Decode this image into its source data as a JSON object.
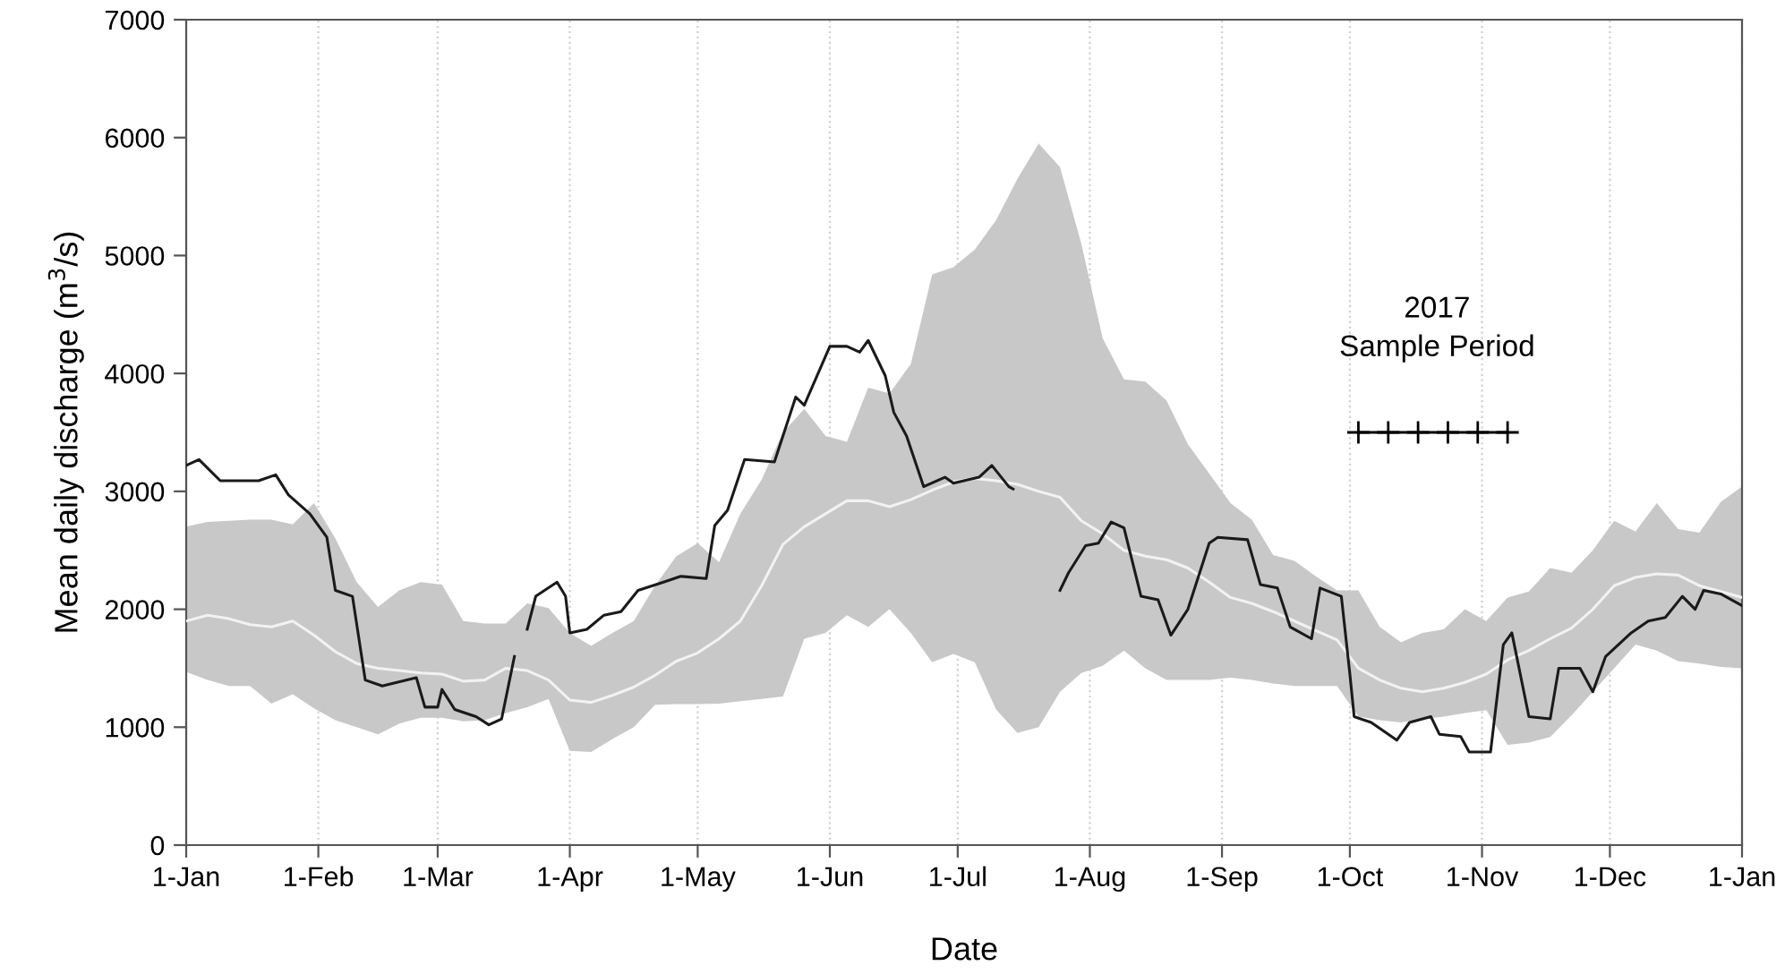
{
  "chart_data": {
    "type": "line",
    "xlabel": "Date",
    "ylabel": "Mean daily discharge (m$^{3}$/s)",
    "xlim": [
      "2017-01-01",
      "2018-01-01"
    ],
    "xticks": [
      {
        "value": "2017-01-01",
        "label": "1-Jan"
      },
      {
        "value": "2017-02-01",
        "label": "1-Feb"
      },
      {
        "value": "2017-03-01",
        "label": "1-Mar"
      },
      {
        "value": "2017-04-01",
        "label": "1-Apr"
      },
      {
        "value": "2017-05-01",
        "label": "1-May"
      },
      {
        "value": "2017-06-01",
        "label": "1-Jun"
      },
      {
        "value": "2017-07-01",
        "label": "1-Jul"
      },
      {
        "value": "2017-08-01",
        "label": "1-Aug"
      },
      {
        "value": "2017-09-01",
        "label": "1-Sep"
      },
      {
        "value": "2017-10-01",
        "label": "1-Oct"
      },
      {
        "value": "2017-11-01",
        "label": "1-Nov"
      },
      {
        "value": "2017-12-01",
        "label": "1-Dec"
      },
      {
        "value": "2018-01-01",
        "label": "1-Jan"
      }
    ],
    "ylim": [
      0,
      7000
    ],
    "yticks": [
      0,
      1000,
      2000,
      3000,
      4000,
      5000,
      6000,
      7000
    ],
    "grid": "x",
    "marker": "none",
    "line_style": "solid",
    "annotations": [
      "2017\nSample Period"
    ],
    "series": [
      {
        "color": "#f2f2f2",
        "x": [
          "2017-01-01",
          "2017-01-06",
          "2017-01-11",
          "2017-01-16",
          "2017-01-21",
          "2017-01-26",
          "2017-01-31",
          "2017-02-05",
          "2017-02-10",
          "2017-02-15",
          "2017-02-20",
          "2017-02-25",
          "2017-03-02",
          "2017-03-07",
          "2017-03-12",
          "2017-03-17",
          "2017-03-22",
          "2017-03-27",
          "2017-04-01",
          "2017-04-06",
          "2017-04-11",
          "2017-04-16",
          "2017-04-21",
          "2017-04-26",
          "2017-05-01",
          "2017-05-06",
          "2017-05-11",
          "2017-05-16",
          "2017-05-21",
          "2017-05-26",
          "2017-05-31",
          "2017-06-05",
          "2017-06-10",
          "2017-06-15",
          "2017-06-20",
          "2017-06-25",
          "2017-06-30",
          "2017-07-05",
          "2017-07-10",
          "2017-07-15",
          "2017-07-20",
          "2017-07-25",
          "2017-07-30",
          "2017-08-04",
          "2017-08-09",
          "2017-08-14",
          "2017-08-19",
          "2017-08-24",
          "2017-08-29",
          "2017-09-03",
          "2017-09-08",
          "2017-09-13",
          "2017-09-18",
          "2017-09-23",
          "2017-09-28",
          "2017-10-03",
          "2017-10-08",
          "2017-10-13",
          "2017-10-18",
          "2017-10-23",
          "2017-10-28",
          "2017-11-02",
          "2017-11-07",
          "2017-11-12",
          "2017-11-17",
          "2017-11-22",
          "2017-11-27",
          "2017-12-02",
          "2017-12-07",
          "2017-12-12",
          "2017-12-17",
          "2017-12-22",
          "2017-12-27",
          "2018-01-01"
        ],
        "values": [
          1900,
          1950,
          1920,
          1870,
          1850,
          1900,
          1780,
          1640,
          1540,
          1500,
          1480,
          1460,
          1450,
          1390,
          1400,
          1500,
          1480,
          1400,
          1230,
          1210,
          1270,
          1340,
          1440,
          1560,
          1630,
          1750,
          1900,
          2200,
          2550,
          2700,
          2810,
          2920,
          2920,
          2870,
          2930,
          3010,
          3080,
          3110,
          3090,
          3060,
          3000,
          2950,
          2750,
          2640,
          2500,
          2450,
          2420,
          2350,
          2230,
          2100,
          2050,
          1980,
          1900,
          1820,
          1740,
          1500,
          1400,
          1330,
          1300,
          1330,
          1380,
          1450,
          1570,
          1650,
          1750,
          1840,
          2000,
          2200,
          2270,
          2300,
          2290,
          2200,
          2150,
          2100
        ],
        "lower": [
          1470,
          1400,
          1350,
          1350,
          1200,
          1280,
          1160,
          1060,
          1000,
          940,
          1030,
          1080,
          1080,
          1050,
          1060,
          1120,
          1170,
          1240,
          800,
          790,
          900,
          1000,
          1190,
          1195,
          1195,
          1200,
          1220,
          1240,
          1260,
          1750,
          1800,
          1950,
          1850,
          2000,
          1800,
          1550,
          1620,
          1550,
          1150,
          950,
          1000,
          1300,
          1460,
          1520,
          1650,
          1500,
          1400,
          1400,
          1400,
          1420,
          1400,
          1370,
          1350,
          1350,
          1350,
          1090,
          1060,
          1040,
          1070,
          1090,
          1120,
          1145,
          850,
          870,
          917,
          1100,
          1300,
          1500,
          1700,
          1650,
          1560,
          1540,
          1510,
          1500
        ],
        "upper": [
          2700,
          2740,
          2750,
          2760,
          2760,
          2720,
          2900,
          2600,
          2230,
          2020,
          2160,
          2230,
          2210,
          1900,
          1880,
          1880,
          2050,
          2010,
          1800,
          1690,
          1800,
          1900,
          2200,
          2450,
          2560,
          2400,
          2810,
          3100,
          3500,
          3700,
          3470,
          3420,
          3880,
          3830,
          4080,
          4840,
          4900,
          5050,
          5300,
          5650,
          5950,
          5750,
          5100,
          4300,
          3950,
          3930,
          3770,
          3400,
          3150,
          2900,
          2760,
          2460,
          2410,
          2280,
          2160,
          2160,
          1850,
          1720,
          1800,
          1830,
          2000,
          1900,
          2100,
          2150,
          2350,
          2310,
          2500,
          2750,
          2660,
          2900,
          2680,
          2650,
          2910,
          3040
        ]
      },
      {
        "color": "#1a1a1a",
        "x": [
          "2017-01-01",
          "2017-01-04",
          "2017-01-09",
          "2017-01-18",
          "2017-01-22",
          "2017-01-25",
          "2017-01-30",
          "2017-02-03",
          "2017-02-05",
          "2017-02-09",
          "2017-02-12",
          "2017-02-16",
          "2017-02-24",
          "2017-02-26",
          "2017-03-01",
          "2017-03-02",
          "2017-03-05",
          "2017-03-10",
          "2017-03-13",
          "2017-03-16",
          "2017-03-19",
          "2017-03-21",
          "2017-03-22",
          "2017-03-24",
          "2017-03-29",
          "2017-03-31",
          "2017-04-01",
          "2017-04-05",
          "2017-04-09",
          "2017-04-13",
          "2017-04-17",
          "2017-04-23",
          "2017-04-27",
          "2017-05-03",
          "2017-05-05",
          "2017-05-08",
          "2017-05-12",
          "2017-05-19",
          "2017-05-24",
          "2017-05-26",
          "2017-06-01",
          "2017-06-05",
          "2017-06-08",
          "2017-06-10",
          "2017-06-14",
          "2017-06-16",
          "2017-06-19",
          "2017-06-23",
          "2017-06-28",
          "2017-06-30",
          "2017-07-06",
          "2017-07-09",
          "2017-07-13",
          "2017-07-14",
          "2017-07-20",
          "2017-07-25",
          "2017-07-27",
          "2017-07-31",
          "2017-08-03",
          "2017-08-06",
          "2017-08-09",
          "2017-08-13",
          "2017-08-17",
          "2017-08-20",
          "2017-08-24",
          "2017-08-29",
          "2017-08-31",
          "2017-09-07",
          "2017-09-10",
          "2017-09-14",
          "2017-09-17",
          "2017-09-22",
          "2017-09-24",
          "2017-09-29",
          "2017-10-01",
          "2017-10-02",
          "2017-10-06",
          "2017-10-12",
          "2017-10-15",
          "2017-10-20",
          "2017-10-22",
          "2017-10-27",
          "2017-10-29",
          "2017-11-03",
          "2017-11-06",
          "2017-11-08",
          "2017-11-12",
          "2017-11-17",
          "2017-11-19",
          "2017-11-24",
          "2017-11-27",
          "2017-11-30",
          "2017-12-06",
          "2017-12-10",
          "2017-12-14",
          "2017-12-18",
          "2017-12-21",
          "2017-12-23",
          "2017-12-27",
          "2018-01-01"
        ],
        "values": [
          3220,
          3270,
          3090,
          3090,
          3140,
          2970,
          2810,
          2610,
          2160,
          2110,
          1400,
          1350,
          1420,
          1170,
          1170,
          1320,
          1150,
          1090,
          1020,
          1070,
          1600,
          null,
          1830,
          2110,
          2230,
          2110,
          1800,
          1830,
          1950,
          1980,
          2160,
          2230,
          2280,
          2260,
          2710,
          2840,
          3270,
          3250,
          3800,
          3730,
          4230,
          4230,
          4180,
          4280,
          3980,
          3670,
          3470,
          3040,
          3120,
          3070,
          3120,
          3220,
          3040,
          3020,
          null,
          2160,
          2310,
          2540,
          2560,
          2740,
          2690,
          2110,
          2080,
          1780,
          2000,
          2560,
          2610,
          2590,
          2210,
          2180,
          1850,
          1750,
          2180,
          2110,
          1450,
          1090,
          1040,
          890,
          1040,
          1090,
          940,
          920,
          790,
          790,
          1700,
          1800,
          1090,
          1070,
          1500,
          1500,
          1300,
          1600,
          1800,
          1900,
          1930,
          2110,
          2000,
          2160,
          2130,
          2030
        ]
      },
      {
        "color": "#000000",
        "marker": "cross",
        "x": [
          "2017-10-03",
          "2017-10-10",
          "2017-10-17",
          "2017-10-24",
          "2017-10-31",
          "2017-11-07"
        ],
        "values": [
          3500,
          3500,
          3500,
          3500,
          3500,
          3500
        ]
      }
    ]
  }
}
